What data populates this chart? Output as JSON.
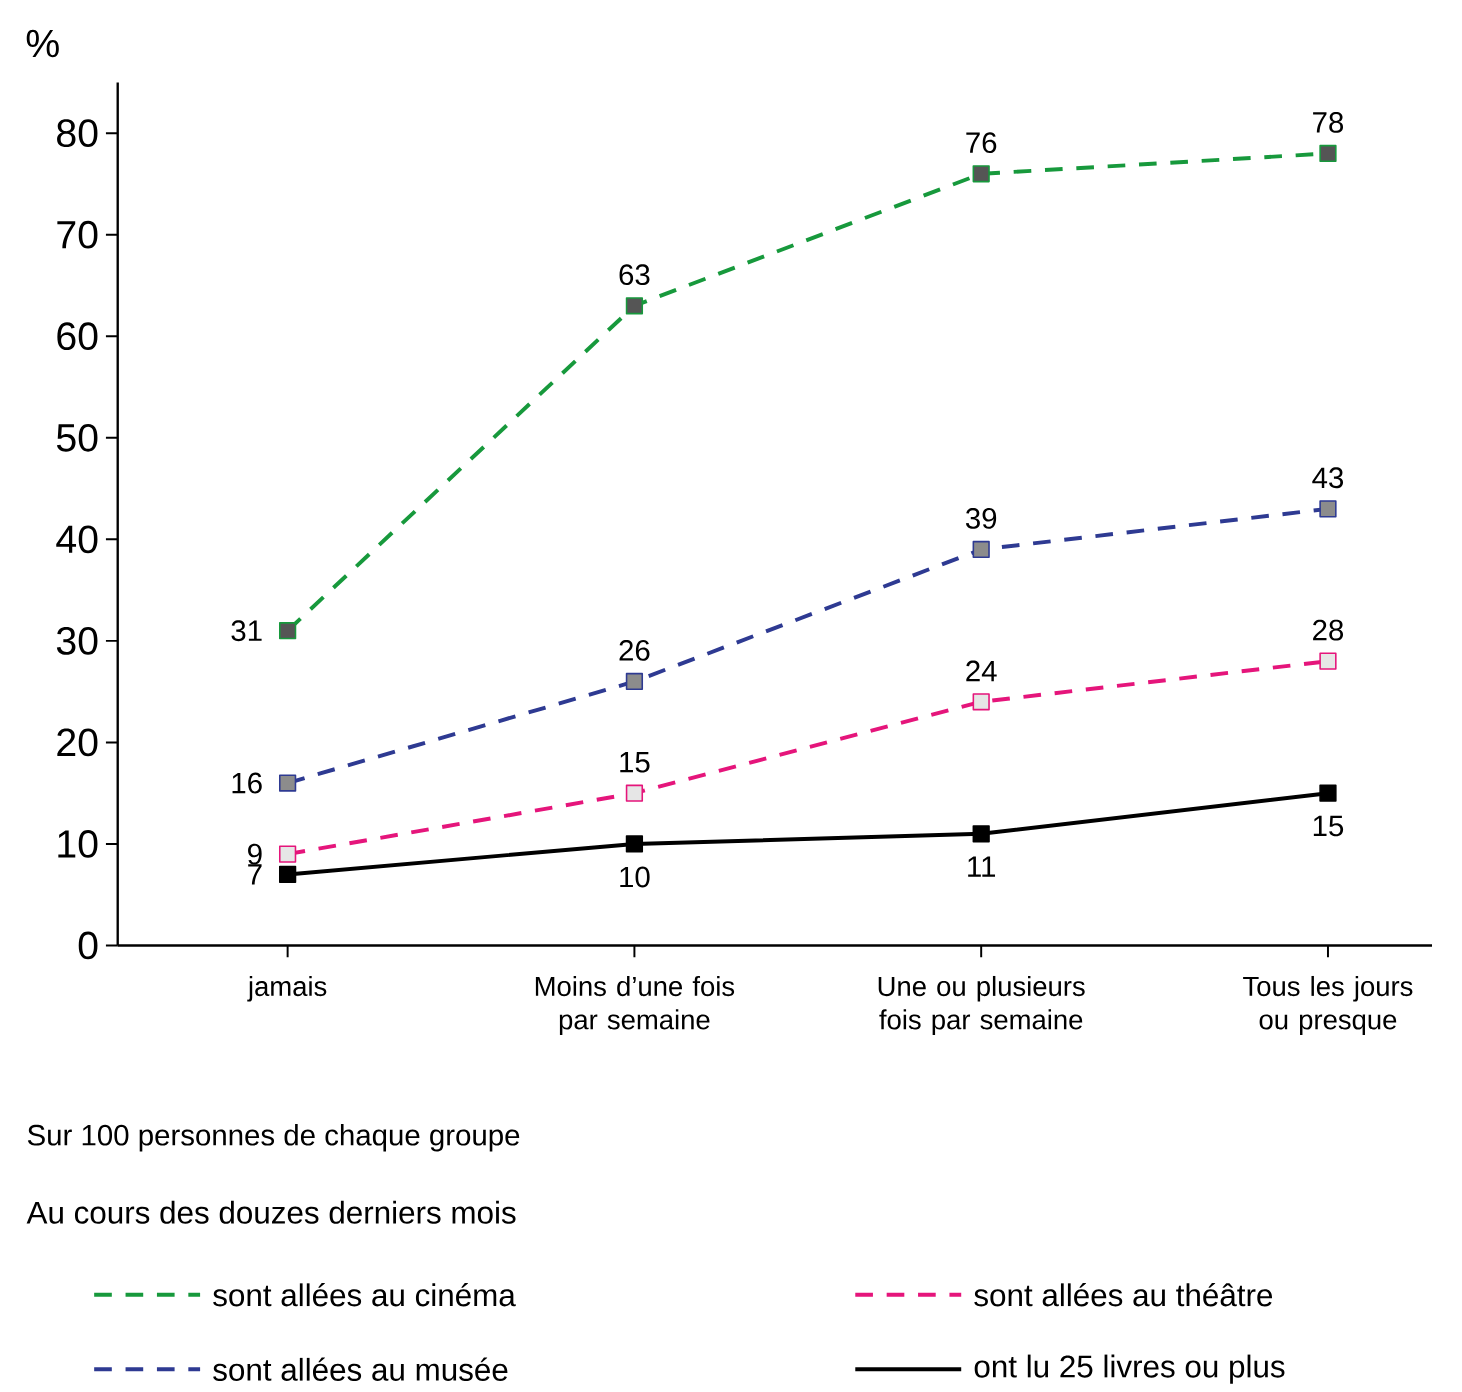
{
  "chart_data": {
    "type": "line",
    "ylabel": "%",
    "legend_title": "Au cours des douzes derniers mois",
    "annotations": [
      "Sur 100 personnes de chaque groupe"
    ],
    "categories": [
      "jamais",
      "Moins d’une fois par semaine",
      "Une ou plusieurs fois par semaine",
      "Tous les jours ou presque"
    ],
    "series": [
      {
        "name": "sont allées au cinéma",
        "color": "#17993c",
        "line_style": "dashed",
        "values": [
          31,
          63,
          76,
          78
        ]
      },
      {
        "name": "sont allées au musée",
        "color": "#2e3a92",
        "line_style": "dashed",
        "values": [
          16,
          26,
          39,
          43
        ]
      },
      {
        "name": "sont allées au théâtre",
        "color": "#e5157b",
        "line_style": "dashed",
        "values": [
          9,
          15,
          24,
          28
        ]
      },
      {
        "name": "ont lu 25 livres ou plus",
        "color": "#000000",
        "line_style": "solid",
        "values": [
          7,
          10,
          11,
          15
        ]
      }
    ],
    "ylim": [
      0,
      85
    ],
    "yticks": [
      0,
      10,
      20,
      30,
      40,
      50,
      60,
      70,
      80
    ],
    "marker": "square",
    "data_labels": true,
    "grid": false,
    "legend": "bottom"
  }
}
